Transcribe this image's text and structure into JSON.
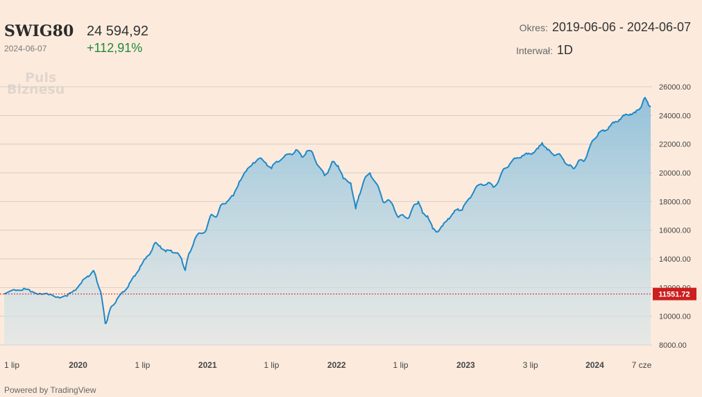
{
  "header": {
    "symbol": "SWIG80",
    "date": "2024-06-07",
    "price": "24 594,92",
    "change": "+112,91%",
    "period_label": "Okres:",
    "period_value": "2019-06-06 - 2024-06-07",
    "interval_label": "Interwał:",
    "interval_value": "1D"
  },
  "logo": {
    "line1": "Puls",
    "line2": "Biznesu"
  },
  "footer": {
    "powered": "Powered by TradingView"
  },
  "colors": {
    "line": "#1e88c8",
    "baseline": "#cc1f1f",
    "change_positive": "#1f8a3a",
    "background": "#fcebdd"
  },
  "chart_data": {
    "type": "area",
    "x_ticks": [
      {
        "label": "1 lip",
        "date": "2019-07-01",
        "bold": false
      },
      {
        "label": "2020",
        "date": "2020-01-01",
        "bold": true
      },
      {
        "label": "1 lip",
        "date": "2020-07-01",
        "bold": false
      },
      {
        "label": "2021",
        "date": "2021-01-01",
        "bold": true
      },
      {
        "label": "1 lip",
        "date": "2021-07-01",
        "bold": false
      },
      {
        "label": "2022",
        "date": "2022-01-01",
        "bold": true
      },
      {
        "label": "1 lip",
        "date": "2022-07-01",
        "bold": false
      },
      {
        "label": "2023",
        "date": "2023-01-01",
        "bold": true
      },
      {
        "label": "3 lip",
        "date": "2023-07-03",
        "bold": false
      },
      {
        "label": "2024",
        "date": "2024-01-01",
        "bold": true
      },
      {
        "label": "7 cze",
        "date": "2024-06-07",
        "bold": false
      }
    ],
    "y_ticks": [
      "8000.00",
      "10000.00",
      "12000.00",
      "14000.00",
      "16000.00",
      "18000.00",
      "20000.00",
      "22000.00",
      "24000.00",
      "26000.00"
    ],
    "ylim": [
      8000,
      26000
    ],
    "xlim": [
      "2019-06-06",
      "2024-06-07"
    ],
    "baseline_label": "11551.72",
    "baseline_value": 11551.72,
    "series": [
      {
        "points": [
          [
            "2019-06-06",
            11551.72
          ],
          [
            "2019-07-10",
            11800
          ],
          [
            "2019-08-01",
            11950
          ],
          [
            "2019-08-20",
            11700
          ],
          [
            "2019-09-15",
            11600
          ],
          [
            "2019-10-10",
            11500
          ],
          [
            "2019-11-05",
            11350
          ],
          [
            "2019-12-01",
            11400
          ],
          [
            "2019-12-20",
            11800
          ],
          [
            "2020-01-10",
            12300
          ],
          [
            "2020-01-28",
            12800
          ],
          [
            "2020-02-12",
            13150
          ],
          [
            "2020-02-20",
            12800
          ],
          [
            "2020-03-05",
            11700
          ],
          [
            "2020-03-18",
            9500
          ],
          [
            "2020-03-25",
            9900
          ],
          [
            "2020-04-05",
            10700
          ],
          [
            "2020-04-20",
            11200
          ],
          [
            "2020-05-10",
            11700
          ],
          [
            "2020-05-25",
            12300
          ],
          [
            "2020-06-10",
            12800
          ],
          [
            "2020-06-25",
            13500
          ],
          [
            "2020-07-10",
            14000
          ],
          [
            "2020-07-25",
            14500
          ],
          [
            "2020-08-05",
            15100
          ],
          [
            "2020-08-20",
            14900
          ],
          [
            "2020-09-05",
            14500
          ],
          [
            "2020-09-20",
            14600
          ],
          [
            "2020-10-05",
            14400
          ],
          [
            "2020-10-20",
            14000
          ],
          [
            "2020-10-30",
            13200
          ],
          [
            "2020-11-10",
            14400
          ],
          [
            "2020-11-25",
            15300
          ],
          [
            "2020-12-10",
            15800
          ],
          [
            "2020-12-28",
            16000
          ],
          [
            "2021-01-12",
            17100
          ],
          [
            "2021-01-28",
            17000
          ],
          [
            "2021-02-10",
            17800
          ],
          [
            "2021-02-25",
            18000
          ],
          [
            "2021-03-15",
            18400
          ],
          [
            "2021-04-01",
            19400
          ],
          [
            "2021-04-20",
            20100
          ],
          [
            "2021-05-10",
            20700
          ],
          [
            "2021-05-28",
            21000
          ],
          [
            "2021-06-15",
            20700
          ],
          [
            "2021-07-01",
            20300
          ],
          [
            "2021-07-15",
            20800
          ],
          [
            "2021-08-05",
            21100
          ],
          [
            "2021-08-25",
            21300
          ],
          [
            "2021-09-08",
            21600
          ],
          [
            "2021-09-25",
            21100
          ],
          [
            "2021-10-08",
            21500
          ],
          [
            "2021-10-25",
            21400
          ],
          [
            "2021-11-10",
            20500
          ],
          [
            "2021-11-28",
            19800
          ],
          [
            "2021-12-10",
            20200
          ],
          [
            "2021-12-22",
            20800
          ],
          [
            "2022-01-05",
            20500
          ],
          [
            "2022-01-20",
            19600
          ],
          [
            "2022-02-10",
            19300
          ],
          [
            "2022-02-24",
            17500
          ],
          [
            "2022-03-05",
            18400
          ],
          [
            "2022-03-20",
            19500
          ],
          [
            "2022-04-05",
            20000
          ],
          [
            "2022-04-25",
            19200
          ],
          [
            "2022-05-12",
            18000
          ],
          [
            "2022-05-25",
            18100
          ],
          [
            "2022-06-10",
            17700
          ],
          [
            "2022-06-25",
            16900
          ],
          [
            "2022-07-10",
            17000
          ],
          [
            "2022-07-25",
            16900
          ],
          [
            "2022-08-10",
            17800
          ],
          [
            "2022-08-20",
            18000
          ],
          [
            "2022-09-01",
            17200
          ],
          [
            "2022-09-15",
            17000
          ],
          [
            "2022-09-30",
            16100
          ],
          [
            "2022-10-13",
            15900
          ],
          [
            "2022-10-28",
            16300
          ],
          [
            "2022-11-12",
            16800
          ],
          [
            "2022-11-28",
            17200
          ],
          [
            "2022-12-10",
            17500
          ],
          [
            "2022-12-22",
            17400
          ],
          [
            "2023-01-10",
            18200
          ],
          [
            "2023-01-28",
            18900
          ],
          [
            "2023-02-15",
            19200
          ],
          [
            "2023-03-05",
            19300
          ],
          [
            "2023-03-20",
            19000
          ],
          [
            "2023-04-05",
            19500
          ],
          [
            "2023-04-20",
            20300
          ],
          [
            "2023-05-05",
            20600
          ],
          [
            "2023-05-22",
            21000
          ],
          [
            "2023-06-10",
            21200
          ],
          [
            "2023-06-25",
            21300
          ],
          [
            "2023-07-10",
            21400
          ],
          [
            "2023-07-25",
            21700
          ],
          [
            "2023-08-05",
            22100
          ],
          [
            "2023-08-20",
            21600
          ],
          [
            "2023-09-05",
            21300
          ],
          [
            "2023-09-20",
            21300
          ],
          [
            "2023-10-05",
            20900
          ],
          [
            "2023-10-20",
            20500
          ],
          [
            "2023-11-01",
            20300
          ],
          [
            "2023-11-15",
            20800
          ],
          [
            "2023-11-30",
            20800
          ],
          [
            "2023-12-12",
            21400
          ],
          [
            "2023-12-28",
            22300
          ],
          [
            "2024-01-12",
            22800
          ],
          [
            "2024-01-28",
            22900
          ],
          [
            "2024-02-10",
            23200
          ],
          [
            "2024-02-25",
            23500
          ],
          [
            "2024-03-10",
            23700
          ],
          [
            "2024-03-25",
            24000
          ],
          [
            "2024-04-10",
            24100
          ],
          [
            "2024-04-25",
            24200
          ],
          [
            "2024-05-08",
            24500
          ],
          [
            "2024-05-20",
            25200
          ],
          [
            "2024-05-30",
            24900
          ],
          [
            "2024-06-07",
            24594.92
          ]
        ]
      }
    ]
  }
}
